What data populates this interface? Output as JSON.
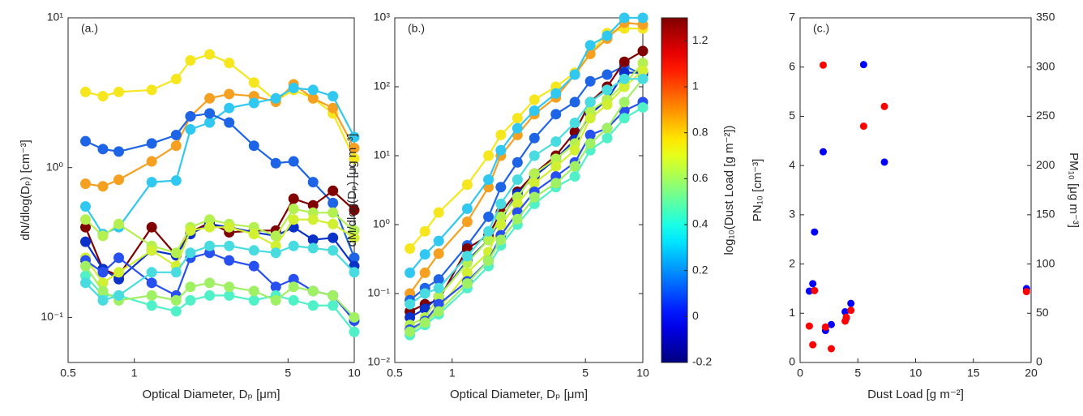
{
  "chart_data": [
    {
      "type": "line",
      "annotation": "(a.)",
      "xlabel": "Optical Diameter, Dₚ [μm]",
      "ylabel": "dN/dlog(Dₚ) [cm⁻³]",
      "xscale": "log",
      "yscale": "log",
      "xlim": [
        0.5,
        10
      ],
      "ylim": [
        0.05,
        10
      ],
      "xticks": [
        0.5,
        1,
        5,
        10
      ],
      "yticks": [
        {
          "value": 0.1,
          "label": "10⁻¹"
        },
        {
          "value": 1,
          "label": "10⁰"
        },
        {
          "value": 10,
          "label": "10¹"
        }
      ],
      "x": [
        0.6,
        0.72,
        0.85,
        1.2,
        1.55,
        1.8,
        2.2,
        2.7,
        3.5,
        4.4,
        5.3,
        6.5,
        8.0,
        10
      ],
      "series": [
        {
          "color": "#f5e61e",
          "values": [
            3.2,
            3.0,
            3.2,
            3.3,
            3.9,
            5.2,
            5.7,
            5.0,
            3.7,
            2.8,
            3.3,
            2.9,
            2.3,
            1.15
          ]
        },
        {
          "color": "#f5a020",
          "values": [
            0.78,
            0.75,
            0.83,
            1.1,
            1.4,
            2.2,
            2.9,
            3.1,
            3.0,
            2.75,
            3.6,
            2.9,
            2.5,
            1.35
          ]
        },
        {
          "color": "#30c8f0",
          "values": [
            0.55,
            0.36,
            0.4,
            0.8,
            0.82,
            1.8,
            2.0,
            2.5,
            2.7,
            2.9,
            3.4,
            3.3,
            3.0,
            1.6
          ]
        },
        {
          "color": "#1e64e6",
          "values": [
            1.5,
            1.33,
            1.28,
            1.45,
            1.65,
            2.2,
            2.3,
            2.0,
            1.4,
            1.07,
            1.1,
            0.8,
            0.58,
            0.25
          ]
        },
        {
          "color": "#800000",
          "values": [
            0.4,
            0.21,
            0.19,
            0.4,
            0.26,
            0.37,
            0.43,
            0.37,
            0.38,
            0.38,
            0.62,
            0.56,
            0.7,
            0.52
          ]
        },
        {
          "color": "#0a32c8",
          "values": [
            0.32,
            0.21,
            0.18,
            0.28,
            0.26,
            0.36,
            0.42,
            0.4,
            0.37,
            0.35,
            0.4,
            0.33,
            0.34,
            0.22
          ]
        },
        {
          "color": "#b4f050",
          "values": [
            0.45,
            0.35,
            0.42,
            0.3,
            0.27,
            0.4,
            0.45,
            0.42,
            0.4,
            0.35,
            0.53,
            0.5,
            0.5,
            0.38
          ]
        },
        {
          "color": "#d2f032",
          "values": [
            0.25,
            0.17,
            0.2,
            0.28,
            0.22,
            0.38,
            0.4,
            0.4,
            0.36,
            0.3,
            0.45,
            0.45,
            0.42,
            0.34
          ]
        },
        {
          "color": "#2850f0",
          "values": [
            0.24,
            0.2,
            0.25,
            0.17,
            0.14,
            0.25,
            0.27,
            0.24,
            0.22,
            0.16,
            0.18,
            0.15,
            0.14,
            0.095
          ]
        },
        {
          "color": "#50f0c8",
          "values": [
            0.19,
            0.14,
            0.14,
            0.12,
            0.11,
            0.13,
            0.14,
            0.14,
            0.13,
            0.14,
            0.13,
            0.12,
            0.12,
            0.08
          ]
        },
        {
          "color": "#a0f064",
          "values": [
            0.22,
            0.15,
            0.13,
            0.14,
            0.13,
            0.16,
            0.17,
            0.16,
            0.15,
            0.13,
            0.16,
            0.15,
            0.14,
            0.1
          ]
        },
        {
          "color": "#48dce0",
          "values": [
            0.17,
            0.13,
            0.14,
            0.2,
            0.2,
            0.27,
            0.3,
            0.3,
            0.28,
            0.27,
            0.3,
            0.29,
            0.28,
            0.2
          ]
        }
      ]
    },
    {
      "type": "line",
      "annotation": "(b.)",
      "xlabel": "Optical Diameter, Dₚ [μm]",
      "ylabel": "dM/dlog(Dₚ) [μg m⁻³]",
      "xscale": "log",
      "yscale": "log",
      "xlim": [
        0.5,
        10
      ],
      "ylim": [
        0.01,
        1000
      ],
      "xticks": [
        0.5,
        1,
        5,
        10
      ],
      "yticks": [
        {
          "value": 0.01,
          "label": "10⁻²"
        },
        {
          "value": 0.1,
          "label": "10⁻¹"
        },
        {
          "value": 1,
          "label": "10⁰"
        },
        {
          "value": 10,
          "label": "10¹"
        },
        {
          "value": 100,
          "label": "10²"
        },
        {
          "value": 1000,
          "label": "10³"
        }
      ],
      "x": [
        0.6,
        0.72,
        0.85,
        1.2,
        1.55,
        1.8,
        2.2,
        2.7,
        3.5,
        4.4,
        5.3,
        6.5,
        8.0,
        10
      ],
      "series": [
        {
          "color": "#f5e61e",
          "values": [
            0.45,
            0.8,
            1.5,
            3.8,
            10,
            20,
            35,
            65,
            100,
            160,
            300,
            600,
            700,
            700
          ]
        },
        {
          "color": "#f5a020",
          "values": [
            0.1,
            0.2,
            0.38,
            1.1,
            3.5,
            10,
            20,
            40,
            70,
            150,
            300,
            500,
            850,
            800
          ]
        },
        {
          "color": "#30c8f0",
          "values": [
            0.2,
            0.37,
            0.58,
            1.7,
            4.5,
            12,
            25,
            45,
            80,
            150,
            400,
            550,
            1000,
            1000
          ]
        },
        {
          "color": "#1e64e6",
          "values": [
            0.08,
            0.12,
            0.16,
            0.5,
            1.3,
            3.5,
            8,
            18,
            40,
            60,
            120,
            150,
            200,
            150
          ]
        },
        {
          "color": "#800000",
          "values": [
            0.055,
            0.07,
            0.08,
            0.45,
            0.7,
            1.5,
            3,
            5.5,
            10,
            22,
            60,
            100,
            230,
            330
          ]
        },
        {
          "color": "#0a32c8",
          "values": [
            0.045,
            0.06,
            0.09,
            0.3,
            0.6,
            1.2,
            2.8,
            5,
            9,
            17,
            40,
            65,
            160,
            160
          ]
        },
        {
          "color": "#b4f050",
          "values": [
            0.035,
            0.045,
            0.09,
            0.28,
            0.6,
            1.3,
            2.5,
            5.5,
            9,
            15,
            45,
            65,
            110,
            220
          ]
        },
        {
          "color": "#d2f032",
          "values": [
            0.03,
            0.04,
            0.06,
            0.2,
            0.4,
            1.0,
            2.0,
            4,
            7,
            12,
            35,
            55,
            100,
            170
          ]
        },
        {
          "color": "#2850f0",
          "values": [
            0.03,
            0.04,
            0.07,
            0.15,
            0.3,
            0.7,
            1.5,
            3,
            5,
            8,
            20,
            25,
            45,
            60
          ]
        },
        {
          "color": "#50f0c8",
          "values": [
            0.025,
            0.035,
            0.05,
            0.12,
            0.25,
            0.5,
            1.0,
            2.0,
            3.5,
            5,
            12,
            18,
            35,
            50
          ]
        },
        {
          "color": "#a0f064",
          "values": [
            0.028,
            0.038,
            0.055,
            0.14,
            0.3,
            0.6,
            1.2,
            2.5,
            4,
            7,
            15,
            25,
            60,
            130
          ]
        },
        {
          "color": "#48dce0",
          "values": [
            0.07,
            0.1,
            0.12,
            0.35,
            0.8,
            2.0,
            4.5,
            10,
            16,
            30,
            60,
            90,
            130,
            130
          ]
        }
      ],
      "colorbar": {
        "label": "log₁₀(Dust Load [g m⁻²])",
        "lim": [
          -0.2,
          1.3
        ],
        "ticks": [
          -0.2,
          0,
          0.2,
          0.4,
          0.6,
          0.8,
          1,
          1.2
        ],
        "colormap": "jet"
      }
    },
    {
      "type": "scatter",
      "annotation": "(c.)",
      "xlabel": "Dust Load [g m⁻²]",
      "ylabel": "PN₁₀ [cm⁻³]",
      "y2label": "PM₁₀ [μg m⁻³]",
      "xlim": [
        0,
        20
      ],
      "ylim": [
        0,
        7
      ],
      "y2lim": [
        0,
        350
      ],
      "xticks": [
        0,
        5,
        10,
        15,
        20
      ],
      "yticks": [
        0,
        1,
        2,
        3,
        4,
        5,
        6,
        7
      ],
      "y2ticks": [
        0,
        50,
        100,
        150,
        200,
        250,
        300,
        350
      ],
      "x": [
        0.8,
        1.1,
        1.25,
        2.0,
        2.2,
        2.7,
        3.9,
        4.0,
        4.4,
        5.5,
        7.3,
        19.6
      ],
      "series": [
        {
          "color": "#0000ff",
          "values": [
            1.45,
            1.6,
            2.65,
            4.28,
            0.65,
            0.77,
            1.03,
            0.9,
            1.2,
            6.05,
            4.07,
            1.5
          ]
        },
        {
          "color": "#ff0000",
          "axis": "y2",
          "values": [
            37,
            18,
            73,
            302,
            36,
            14,
            42,
            46,
            53,
            240,
            260,
            72
          ]
        }
      ]
    }
  ]
}
